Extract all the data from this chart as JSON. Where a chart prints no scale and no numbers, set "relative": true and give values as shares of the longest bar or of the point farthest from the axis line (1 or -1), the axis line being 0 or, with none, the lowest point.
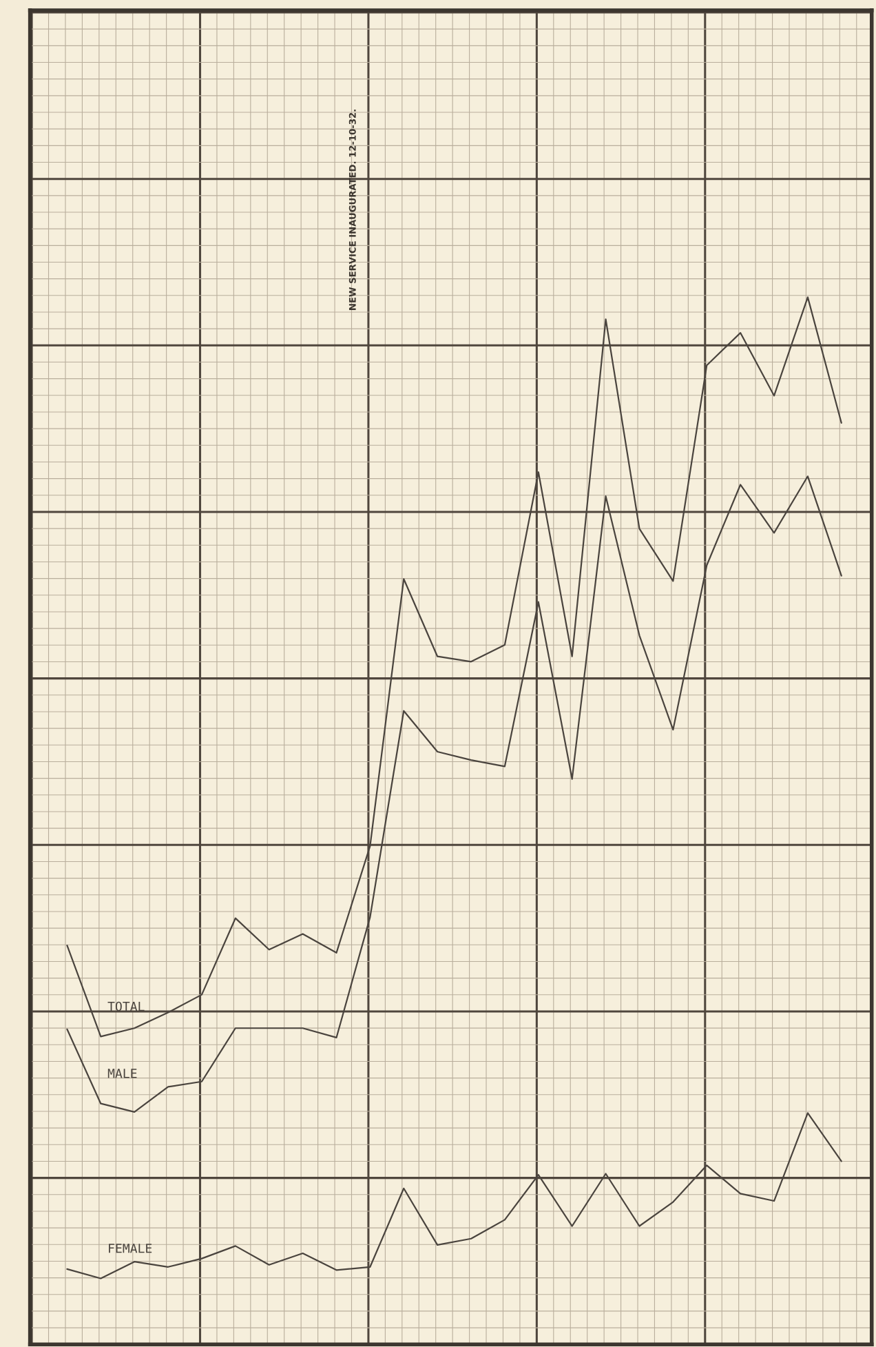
{
  "chart_data": {
    "type": "line",
    "relative": true,
    "grid": true,
    "legend": false,
    "marker": "none",
    "line_style": "solid",
    "categories": [
      null,
      null,
      null,
      null,
      null,
      null,
      null,
      null,
      null,
      null,
      null,
      null,
      null,
      null,
      null,
      null,
      null,
      null,
      null,
      null,
      null,
      null,
      null,
      null
    ],
    "series": [
      {
        "name": "TOTAL",
        "color": "#4a443e",
        "values": [
          0.381,
          0.294,
          0.302,
          0.317,
          0.334,
          0.407,
          0.377,
          0.392,
          0.374,
          0.476,
          0.731,
          0.657,
          0.652,
          0.668,
          0.833,
          0.657,
          0.979,
          0.779,
          0.729,
          0.935,
          0.966,
          0.906,
          1,
          0.88
        ]
      },
      {
        "name": "MALE",
        "color": "#4a443e",
        "values": [
          0.301,
          0.23,
          0.222,
          0.246,
          0.251,
          0.302,
          0.302,
          0.302,
          0.293,
          0.408,
          0.605,
          0.566,
          0.558,
          0.552,
          0.709,
          0.54,
          0.81,
          0.677,
          0.587,
          0.744,
          0.821,
          0.775,
          0.829,
          0.734
        ]
      },
      {
        "name": "FEMALE",
        "color": "#4a443e",
        "values": [
          0.072,
          0.063,
          0.079,
          0.074,
          0.082,
          0.094,
          0.076,
          0.087,
          0.071,
          0.074,
          0.149,
          0.095,
          0.101,
          0.119,
          0.162,
          0.113,
          0.163,
          0.113,
          0.136,
          0.171,
          0.144,
          0.137,
          0.221,
          0.175
        ]
      }
    ],
    "annotations": [
      "NEW SERVICE INAUGURATED. 12-10-32."
    ]
  }
}
